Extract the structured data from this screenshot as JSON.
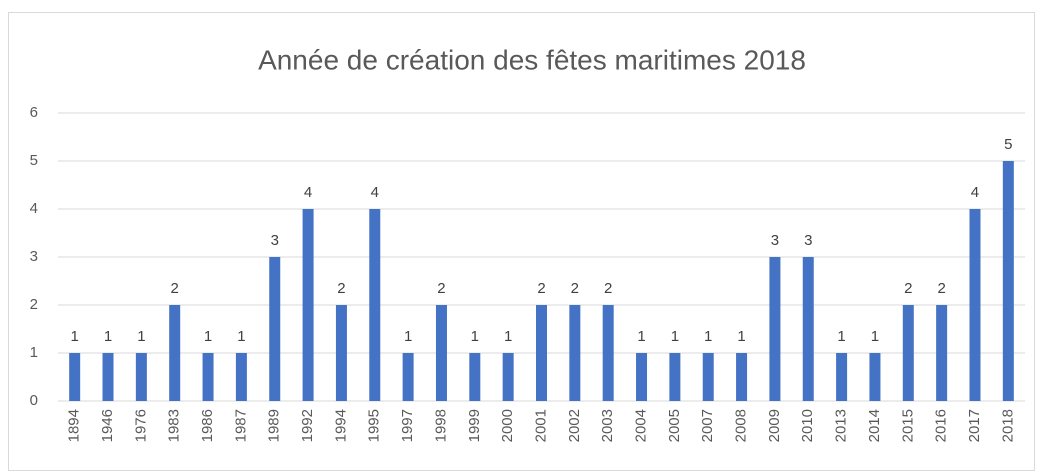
{
  "chart_data": {
    "type": "bar",
    "title": "Année de création des fêtes maritimes 2018",
    "categories": [
      "1894",
      "1946",
      "1976",
      "1983",
      "1986",
      "1987",
      "1989",
      "1992",
      "1994",
      "1995",
      "1997",
      "1998",
      "1999",
      "2000",
      "2001",
      "2002",
      "2003",
      "2004",
      "2005",
      "2007",
      "2008",
      "2009",
      "2010",
      "2013",
      "2014",
      "2015",
      "2016",
      "2017",
      "2018"
    ],
    "values": [
      1,
      1,
      1,
      2,
      1,
      1,
      3,
      4,
      2,
      4,
      1,
      2,
      1,
      1,
      2,
      2,
      2,
      1,
      1,
      1,
      1,
      3,
      3,
      1,
      1,
      2,
      2,
      4,
      5
    ],
    "color": "#4472c4",
    "ylim": [
      0,
      6
    ],
    "yticks": [
      0,
      1,
      2,
      3,
      4,
      5,
      6
    ],
    "grid": true
  }
}
